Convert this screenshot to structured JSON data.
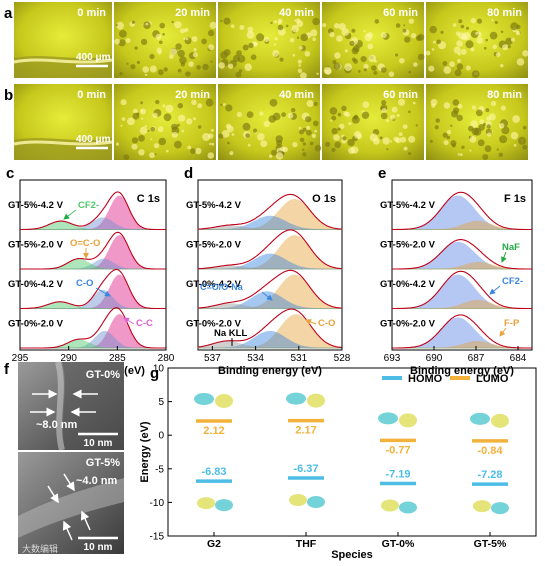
{
  "panel_a": {
    "letter": "a",
    "time_labels": [
      "0 min",
      "20 min",
      "40 min",
      "60 min",
      "80 min"
    ],
    "scale_bar": "400 μm"
  },
  "panel_b": {
    "letter": "b",
    "time_labels": [
      "0 min",
      "20 min",
      "40 min",
      "60 min",
      "80 min"
    ],
    "scale_bar": "400 μm"
  },
  "panel_f": {
    "letter": "f",
    "top": {
      "label": "GT-0%",
      "thickness": "~8.0 nm",
      "scale_bar": "10 nm"
    },
    "bottom": {
      "label": "GT-5%",
      "thickness": "~4.0 nm",
      "scale_bar": "10 nm"
    },
    "watermark": "大数编辑"
  },
  "chart_data": [
    {
      "id": "c",
      "type": "line",
      "title": "C 1s",
      "xlabel": "Binding energy (eV)",
      "ylabel": "",
      "xlim": [
        295,
        280
      ],
      "x_ticks": [
        295,
        290,
        285,
        280
      ],
      "series": [
        {
          "name": "GT-5%-4.2 V",
          "peaks": [
            {
              "center": 284.8,
              "width": 1.0,
              "height": 1.0
            },
            {
              "center": 286.5,
              "width": 1.1,
              "height": 0.35
            },
            {
              "center": 290.8,
              "width": 1.2,
              "height": 0.25
            }
          ]
        },
        {
          "name": "GT-5%-2.0 V",
          "peaks": [
            {
              "center": 284.8,
              "width": 1.0,
              "height": 1.0
            },
            {
              "center": 286.4,
              "width": 1.0,
              "height": 0.3
            },
            {
              "center": 289.0,
              "width": 1.1,
              "height": 0.3
            }
          ]
        },
        {
          "name": "GT-0%-4.2 V",
          "peaks": [
            {
              "center": 284.8,
              "width": 1.0,
              "height": 1.0
            },
            {
              "center": 286.5,
              "width": 1.0,
              "height": 0.55
            },
            {
              "center": 290.9,
              "width": 1.2,
              "height": 0.2
            }
          ]
        },
        {
          "name": "GT-0%-2.0 V",
          "peaks": [
            {
              "center": 284.8,
              "width": 1.0,
              "height": 1.0
            },
            {
              "center": 286.3,
              "width": 1.0,
              "height": 0.5
            },
            {
              "center": 289.0,
              "width": 1.1,
              "height": 0.25
            }
          ]
        }
      ],
      "annotations": [
        "CF2-",
        "O=C-O",
        "C-O",
        "C-C"
      ]
    },
    {
      "id": "d",
      "type": "line",
      "title": "O 1s",
      "xlabel": "Binding energy (eV)",
      "ylabel": "",
      "xlim": [
        538,
        528
      ],
      "x_ticks": [
        537,
        534,
        531,
        528
      ],
      "series": [
        {
          "name": "GT-5%-4.2 V",
          "peaks": [
            {
              "center": 531.3,
              "width": 1.1,
              "height": 0.9
            },
            {
              "center": 533.0,
              "width": 1.1,
              "height": 0.4
            },
            {
              "center": 535.8,
              "width": 1.0,
              "height": 0.12
            }
          ]
        },
        {
          "name": "GT-5%-2.0 V",
          "peaks": [
            {
              "center": 531.3,
              "width": 1.1,
              "height": 1.0
            },
            {
              "center": 533.0,
              "width": 1.1,
              "height": 0.45
            },
            {
              "center": 535.8,
              "width": 1.0,
              "height": 0.1
            }
          ]
        },
        {
          "name": "GT-0%-4.2 V",
          "peaks": [
            {
              "center": 531.3,
              "width": 1.1,
              "height": 1.0
            },
            {
              "center": 533.2,
              "width": 1.1,
              "height": 0.5
            },
            {
              "center": 535.8,
              "width": 1.0,
              "height": 0.15
            }
          ]
        },
        {
          "name": "GT-0%-2.0 V",
          "peaks": [
            {
              "center": 531.2,
              "width": 1.1,
              "height": 1.0
            },
            {
              "center": 533.0,
              "width": 1.1,
              "height": 0.5
            },
            {
              "center": 536.0,
              "width": 1.0,
              "height": 0.2
            }
          ]
        }
      ],
      "annotations": [
        "C=O/O-Na",
        "Na KLL",
        "C-O"
      ]
    },
    {
      "id": "e",
      "type": "line",
      "title": "F 1s",
      "xlabel": "Binding energy (eV)",
      "ylabel": "",
      "xlim": [
        693,
        683
      ],
      "x_ticks": [
        693,
        690,
        687,
        684
      ],
      "series": [
        {
          "name": "GT-5%-4.2 V",
          "peaks": [
            {
              "center": 688.3,
              "width": 1.2,
              "height": 1.0
            },
            {
              "center": 686.9,
              "width": 1.0,
              "height": 0.25
            }
          ]
        },
        {
          "name": "GT-5%-2.0 V",
          "peaks": [
            {
              "center": 688.3,
              "width": 1.2,
              "height": 0.8
            },
            {
              "center": 686.8,
              "width": 1.0,
              "height": 0.2
            }
          ]
        },
        {
          "name": "GT-0%-4.2 V",
          "peaks": [
            {
              "center": 688.3,
              "width": 1.2,
              "height": 1.0
            },
            {
              "center": 686.9,
              "width": 1.0,
              "height": 0.25
            }
          ]
        },
        {
          "name": "GT-0%-2.0 V",
          "peaks": [
            {
              "center": 688.3,
              "width": 1.2,
              "height": 0.9
            },
            {
              "center": 686.9,
              "width": 1.0,
              "height": 0.2
            }
          ]
        }
      ],
      "annotations": [
        "NaF",
        "CF2-",
        "F-P"
      ]
    },
    {
      "id": "g",
      "type": "bar",
      "title": "",
      "xlabel": "Species",
      "ylabel": "Energy (eV)",
      "ylim": [
        -15,
        10
      ],
      "y_ticks": [
        10,
        5,
        0,
        -5,
        -10,
        -15
      ],
      "categories": [
        "G2",
        "THF",
        "GT-0%",
        "GT-5%"
      ],
      "series": [
        {
          "name": "HOMO",
          "values": [
            -6.83,
            -6.37,
            -7.19,
            -7.28
          ]
        },
        {
          "name": "LUMO",
          "values": [
            2.12,
            2.17,
            -0.77,
            -0.84
          ]
        }
      ],
      "legend": "top-right"
    }
  ],
  "colors": {
    "homo": "#4dbde6",
    "lumo": "#f2b23c",
    "envelope": "#c0001a",
    "c_main": "#e0208a",
    "c_co": "#6f8fd0",
    "c_cf2": "#4cc86a",
    "o_co": "#e8a33a",
    "o_cona": "#3a86e0",
    "f_main": "#5b86e5",
    "f_naf": "#22aa44"
  }
}
